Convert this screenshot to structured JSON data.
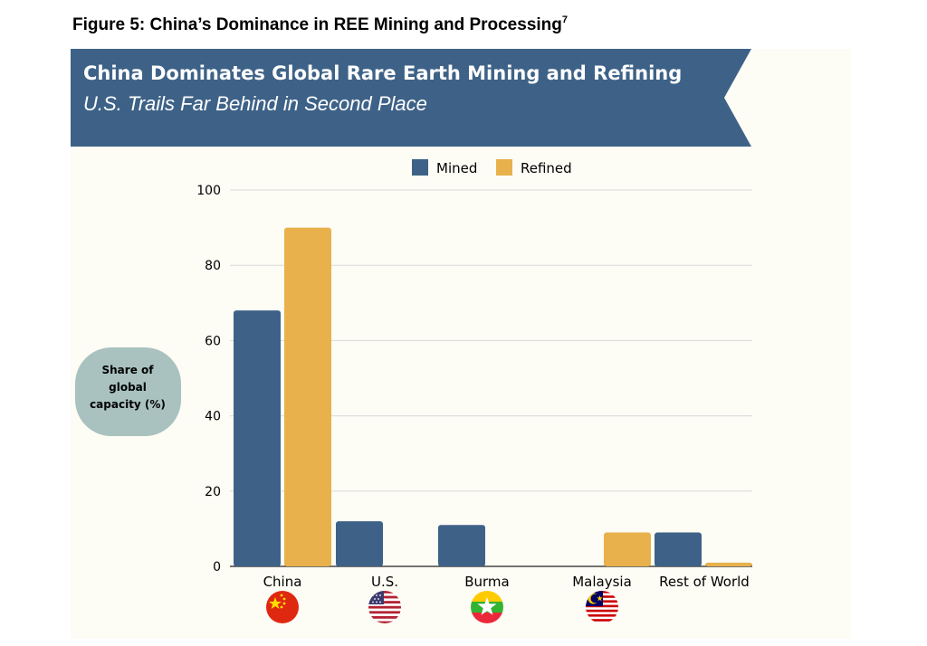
{
  "figure": {
    "title": "Figure 5: China’s Dominance in REE Mining and Processing",
    "footnote": "7"
  },
  "banner": {
    "title": "China Dominates Global Rare Earth Mining and Refining",
    "subtitle": "U.S. Trails Far Behind in Second Place",
    "color": "#3e6287"
  },
  "colors": {
    "mined": "#3e6287",
    "refined": "#e8b14c",
    "grid": "#d9d9d9",
    "axis": "#222222",
    "ylabel_bg": "#a9c2bf"
  },
  "chart_data": {
    "type": "bar",
    "title": "China Dominates Global Rare Earth Mining and Refining",
    "subtitle": "U.S. Trails Far Behind in Second Place",
    "categories": [
      "China",
      "U.S.",
      "Burma",
      "Malaysia",
      "Rest of World"
    ],
    "series": [
      {
        "name": "Mined",
        "values": [
          68,
          12,
          11,
          0,
          9
        ]
      },
      {
        "name": "Refined",
        "values": [
          90,
          0,
          0,
          9,
          1
        ]
      }
    ],
    "xlabel": "",
    "ylabel_lines": [
      "Share of",
      "global",
      "capacity (%)"
    ],
    "ylim": [
      0,
      100
    ],
    "yticks": [
      0,
      20,
      40,
      60,
      80,
      100
    ],
    "grid": true,
    "legend_position": "top-center",
    "flags": [
      "china-flag-icon",
      "us-flag-icon",
      "burma-flag-icon",
      "malaysia-flag-icon",
      ""
    ]
  }
}
